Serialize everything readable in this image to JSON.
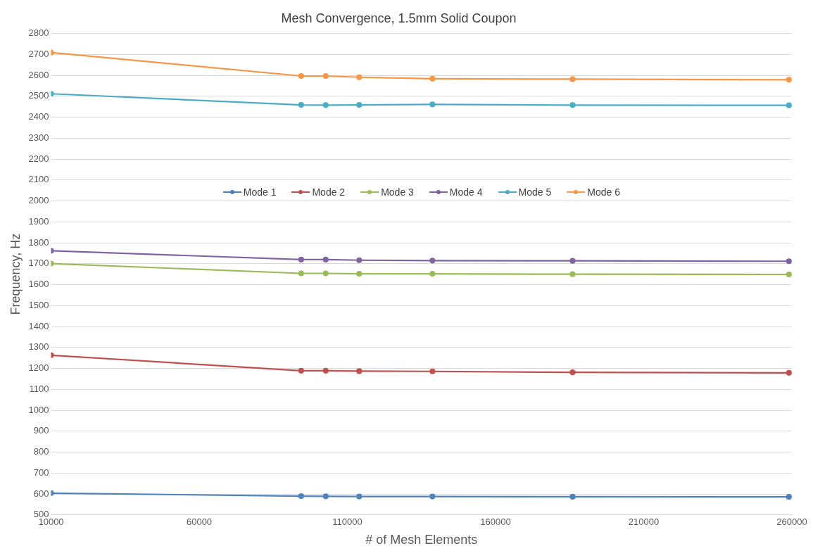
{
  "chart_data": {
    "type": "line",
    "title": "Mesh Convergence, 1.5mm Solid Coupon",
    "xlabel": "# of Mesh Elements",
    "ylabel": "Frequency, Hz",
    "x": [
      10000,
      94400,
      102700,
      114000,
      138700,
      186000,
      259000
    ],
    "series": [
      {
        "name": "Mode 1",
        "color": "#4f81bd",
        "values": [
          604,
          590,
          589,
          588,
          588,
          587,
          586
        ]
      },
      {
        "name": "Mode 2",
        "color": "#c0504d",
        "values": [
          1263,
          1189,
          1189,
          1187,
          1186,
          1181,
          1179
        ]
      },
      {
        "name": "Mode 3",
        "color": "#9bbb59",
        "values": [
          1701,
          1654,
          1654,
          1652,
          1652,
          1650,
          1649
        ]
      },
      {
        "name": "Mode 4",
        "color": "#8064a2",
        "values": [
          1762,
          1720,
          1720,
          1717,
          1715,
          1714,
          1712
        ]
      },
      {
        "name": "Mode 5",
        "color": "#4bacc6",
        "values": [
          2512,
          2459,
          2458,
          2459,
          2461,
          2458,
          2457
        ]
      },
      {
        "name": "Mode 6",
        "color": "#f79646",
        "values": [
          2709,
          2597,
          2597,
          2591,
          2584,
          2582,
          2579
        ]
      }
    ],
    "xlim": [
      10000,
      260000
    ],
    "xticks": [
      10000,
      60000,
      110000,
      160000,
      210000,
      260000
    ],
    "ylim": [
      500,
      2800
    ],
    "yticks": [
      500,
      600,
      700,
      800,
      900,
      1000,
      1100,
      1200,
      1300,
      1400,
      1500,
      1600,
      1700,
      1800,
      1900,
      2000,
      2100,
      2200,
      2300,
      2400,
      2500,
      2600,
      2700,
      2800
    ],
    "grid": "y",
    "legend": "center",
    "marker": "circle",
    "line_style": "solid"
  }
}
